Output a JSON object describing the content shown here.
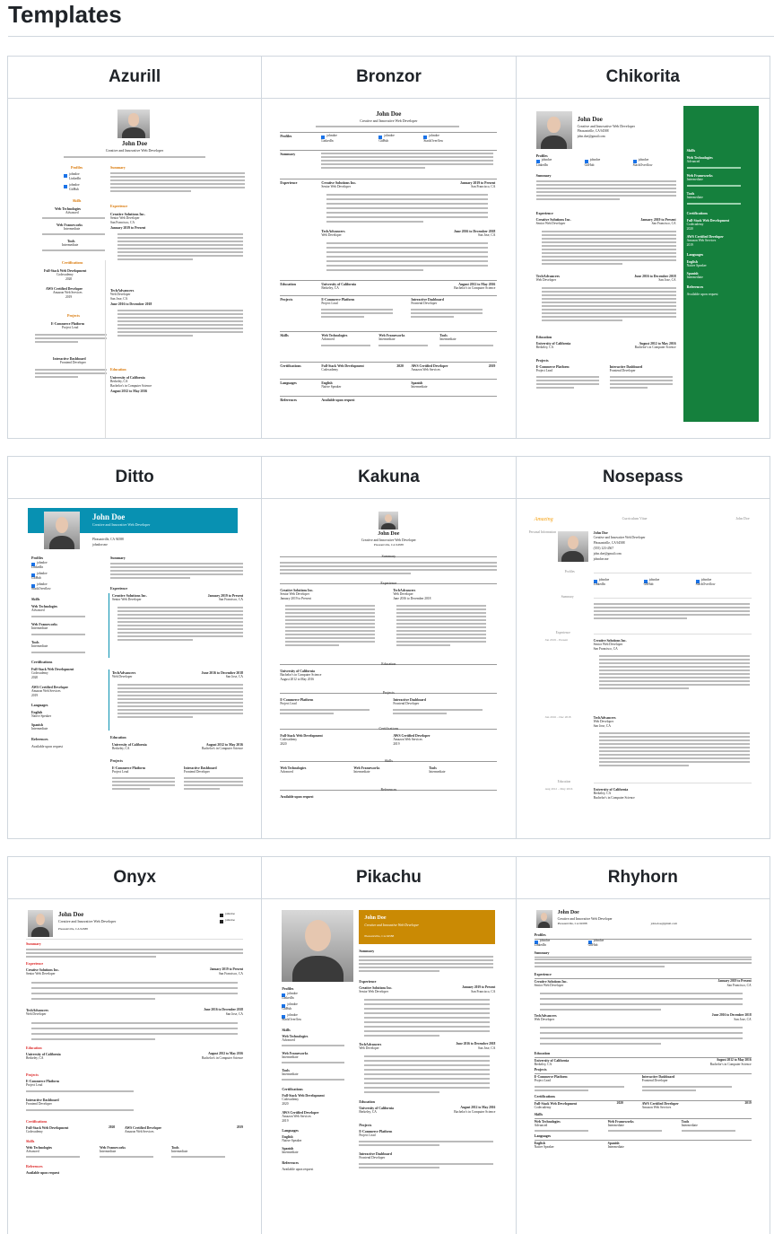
{
  "page": {
    "title": "Templates"
  },
  "templates": [
    {
      "name": "Azurill"
    },
    {
      "name": "Bronzor"
    },
    {
      "name": "Chikorita"
    },
    {
      "name": "Ditto"
    },
    {
      "name": "Kakuna"
    },
    {
      "name": "Nosepass"
    },
    {
      "name": "Onyx"
    },
    {
      "name": "Pikachu"
    },
    {
      "name": "Rhyhorn"
    }
  ],
  "resume": {
    "name": "John Doe",
    "headline": "Creative and Innovative Web Developer",
    "location": "Pleasantville, CA 94588",
    "phone": "(555) 123-4567",
    "email": "john.doe@gmail.com",
    "website": "johndoe.me",
    "section_profiles": "Profiles",
    "section_summary": "Summary",
    "section_experience": "Experience",
    "section_education": "Education",
    "section_projects": "Projects",
    "section_skills": "Skills",
    "section_certifications": "Certifications",
    "section_languages": "Languages",
    "section_references": "References",
    "profile_linkedin": "LinkedIn",
    "profile_github": "GitHub",
    "profile_stackoverflow": "StackOverflow",
    "handle": "johndoe",
    "company1": "Creative Solutions Inc.",
    "role1": "Senior Web Developer",
    "place1": "San Francisco, CA",
    "date1": "January 2019 to Present",
    "company2": "TechAdvancers",
    "role2": "Web Developer",
    "place2": "San Jose, CA",
    "date2": "June 2016 to December 2018",
    "school": "University of California",
    "degree": "Bachelor's in Computer Science",
    "school_date": "August 2012 to May 2016",
    "school_place": "Berkeley, CA",
    "project1": "E-Commerce Platform",
    "project1_role": "Project Lead",
    "project2": "Interactive Dashboard",
    "project2_role": "Frontend Developer",
    "skill1": "Web Technologies",
    "skill1_level": "Advanced",
    "skill2": "Web Frameworks",
    "skill2_level": "Intermediate",
    "skill3": "Tools",
    "skill3_level": "Intermediate",
    "cert1": "Full-Stack Web Development",
    "cert1_issuer": "Codecademy",
    "cert1_year": "2020",
    "cert2": "AWS Certified Developer",
    "cert2_issuer": "Amazon Web Services",
    "cert2_year": "2019",
    "lang1": "English",
    "lang1_level": "Native Speaker",
    "lang2": "Spanish",
    "lang2_level": "Intermediate",
    "references": "Available upon request",
    "nosepass_logo": "Amazing",
    "nosepass_label1": "Personal Information",
    "nosepass_label2": "Curriculum Vitae",
    "nosepass_date1": "Jan 2019 – Present",
    "nosepass_date2": "Jun 2016 – Dec 2018",
    "nosepass_date3": "Aug 2012 – May 2016"
  },
  "colors": {
    "azurill": "#d97706",
    "chikorita": "#15803d",
    "ditto": "#0891b2",
    "pikachu": "#ca8a04",
    "onyx": "#dc2626",
    "link": "#1a73e8"
  }
}
